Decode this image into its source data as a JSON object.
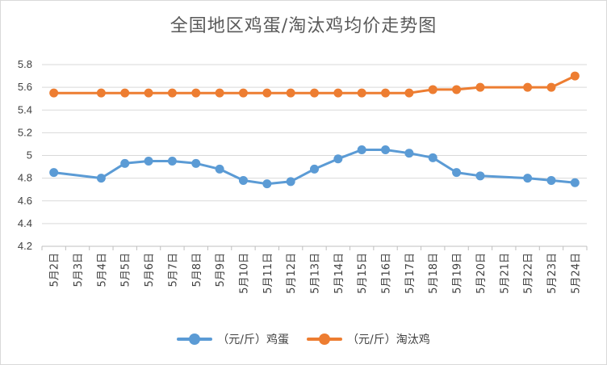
{
  "chart_data": {
    "type": "line",
    "title": "全国地区鸡蛋/淘汰鸡均价走势图",
    "categories": [
      "5月2日",
      "5月3日",
      "5月4日",
      "5月5日",
      "5月6日",
      "5月7日",
      "5月8日",
      "5月9日",
      "5月10日",
      "5月11日",
      "5月12日",
      "5月13日",
      "5月14日",
      "5月15日",
      "5月16日",
      "5月17日",
      "5月18日",
      "5月19日",
      "5月20日",
      "5月21日",
      "5月22日",
      "5月23日",
      "5月24日"
    ],
    "ylim": [
      4.2,
      5.8
    ],
    "yticks": [
      "4.2",
      "4.4",
      "4.6",
      "4.8",
      "5",
      "5.2",
      "5.4",
      "5.6",
      "5.8"
    ],
    "grid": true,
    "legend_position": "bottom",
    "series": [
      {
        "name": "（元/斤）鸡蛋",
        "color": "#5b9bd5",
        "values": [
          4.85,
          null,
          4.8,
          4.93,
          4.95,
          4.95,
          4.93,
          4.88,
          4.78,
          4.75,
          4.77,
          4.88,
          4.97,
          5.05,
          5.05,
          5.02,
          4.98,
          4.85,
          4.82,
          null,
          4.8,
          4.78,
          4.76
        ]
      },
      {
        "name": "（元/斤）淘汰鸡",
        "color": "#ed7d31",
        "values": [
          5.55,
          null,
          5.55,
          5.55,
          5.55,
          5.55,
          5.55,
          5.55,
          5.55,
          5.55,
          5.55,
          5.55,
          5.55,
          5.55,
          5.55,
          5.55,
          5.58,
          5.58,
          5.6,
          null,
          5.6,
          5.6,
          5.7
        ]
      }
    ]
  }
}
